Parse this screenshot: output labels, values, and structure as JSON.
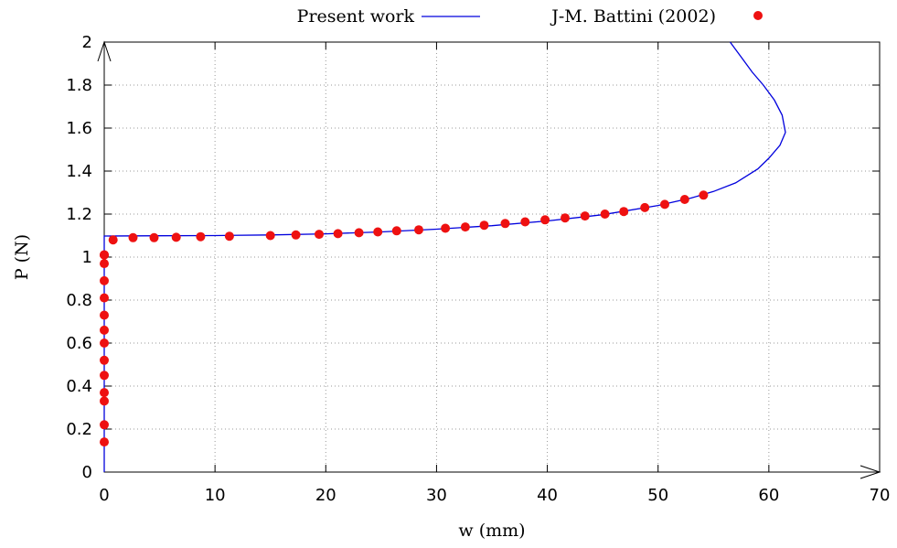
{
  "chart_data": {
    "type": "scatter",
    "title": "",
    "xlabel": "w (mm)",
    "ylabel": "P (N)",
    "xlim": [
      0,
      70
    ],
    "ylim": [
      0,
      2
    ],
    "xticks": [
      0,
      10,
      20,
      30,
      40,
      50,
      60,
      70
    ],
    "yticks": [
      0,
      0.2,
      0.4,
      0.6,
      0.8,
      1,
      1.2,
      1.4,
      1.6,
      1.8,
      2
    ],
    "grid": true,
    "legend_position": "top",
    "series": [
      {
        "name": "Present work",
        "kind": "line",
        "color": "#0000dd",
        "x": [
          0,
          0,
          0,
          5,
          10,
          15,
          20,
          25,
          30,
          35,
          40,
          45,
          50,
          53,
          55,
          57,
          59,
          60,
          61,
          61.5,
          61.2,
          60.5,
          59.5,
          58.5,
          57.5,
          56.5
        ],
        "y": [
          0,
          1.0,
          1.098,
          1.099,
          1.1,
          1.103,
          1.108,
          1.117,
          1.13,
          1.146,
          1.168,
          1.197,
          1.24,
          1.275,
          1.305,
          1.345,
          1.41,
          1.46,
          1.52,
          1.58,
          1.66,
          1.73,
          1.8,
          1.86,
          1.93,
          2.0
        ]
      },
      {
        "name": "J-M. Battini (2002)",
        "kind": "points",
        "color": "#ee1111",
        "x": [
          0,
          0,
          0,
          0,
          0,
          0,
          0,
          0,
          0,
          0,
          0,
          0,
          0,
          0,
          0,
          0.8,
          2.6,
          4.5,
          6.5,
          8.7,
          11.3,
          15,
          17.3,
          19.4,
          21.1,
          23,
          24.7,
          26.4,
          28.4,
          30.8,
          32.6,
          34.3,
          36.2,
          38,
          39.8,
          41.6,
          43.4,
          45.2,
          46.9,
          48.8,
          50.6,
          52.4,
          54.1
        ],
        "y": [
          0.14,
          0.22,
          0.33,
          0.37,
          0.45,
          0.52,
          0.6,
          0.66,
          0.73,
          0.81,
          0.89,
          0.97,
          1.01,
          1.01,
          1.01,
          1.08,
          1.09,
          1.09,
          1.092,
          1.095,
          1.097,
          1.1,
          1.103,
          1.106,
          1.109,
          1.113,
          1.117,
          1.122,
          1.127,
          1.134,
          1.14,
          1.148,
          1.156,
          1.164,
          1.173,
          1.182,
          1.191,
          1.2,
          1.212,
          1.23,
          1.245,
          1.268,
          1.288
        ]
      }
    ]
  }
}
